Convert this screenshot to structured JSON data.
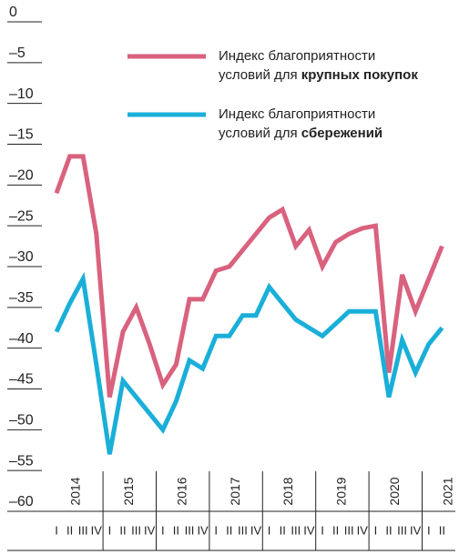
{
  "chart_data": {
    "type": "line",
    "years": [
      "2014",
      "2015",
      "2016",
      "2017",
      "2018",
      "2019",
      "2020",
      "2021"
    ],
    "categories": [
      "I",
      "II",
      "III",
      "IV",
      "I",
      "II",
      "III",
      "IV",
      "I",
      "II",
      "III",
      "IV",
      "I",
      "II",
      "III",
      "IV",
      "I",
      "II",
      "III",
      "IV",
      "I",
      "II",
      "III",
      "IV",
      "I",
      "II",
      "III",
      "IV",
      "I",
      "II"
    ],
    "ylim": [
      -60,
      0
    ],
    "yticks": [
      0,
      {
        "value": -5,
        "label": "–5"
      },
      {
        "value": -10,
        "label": "–10"
      },
      {
        "value": -15,
        "label": "–15"
      },
      {
        "value": -20,
        "label": "–20"
      },
      {
        "value": -25,
        "label": "–25"
      },
      {
        "value": -30,
        "label": "–30"
      },
      {
        "value": -35,
        "label": "–35"
      },
      {
        "value": -40,
        "label": "–40"
      },
      {
        "value": -45,
        "label": "–45"
      },
      {
        "value": -50,
        "label": "–50"
      },
      {
        "value": -55,
        "label": "–55"
      },
      {
        "value": -60,
        "label": "–60"
      }
    ],
    "series": [
      {
        "name": [
          "Индекс благоприятности",
          "условий для ",
          "крупных покупок"
        ],
        "color": "#d9627e",
        "values": [
          -21,
          -16.5,
          -16.5,
          -26,
          -46,
          -38,
          -35,
          -39.5,
          -44.5,
          -42,
          -34,
          -34,
          -30.5,
          -30,
          -28,
          -26,
          -24,
          -23,
          -27.5,
          -25.5,
          -30,
          -27,
          -26,
          -25.3,
          -25,
          -43,
          -31,
          -35.5,
          -31.5,
          -27.5
        ]
      },
      {
        "name": [
          "Индекс благоприятности",
          "условий для ",
          "сбережений"
        ],
        "color": "#1aafd8",
        "values": [
          -38,
          -34.5,
          -31.5,
          -42,
          -53,
          -44,
          -46,
          -48,
          -50,
          -46.5,
          -41.5,
          -42.5,
          -38.5,
          -38.5,
          -36,
          -36,
          -32.5,
          -34.5,
          -36.5,
          -37.5,
          -38.5,
          -37,
          -35.5,
          -35.5,
          -35.5,
          -46,
          -39,
          -43,
          -39.5,
          -37.5
        ]
      }
    ]
  }
}
